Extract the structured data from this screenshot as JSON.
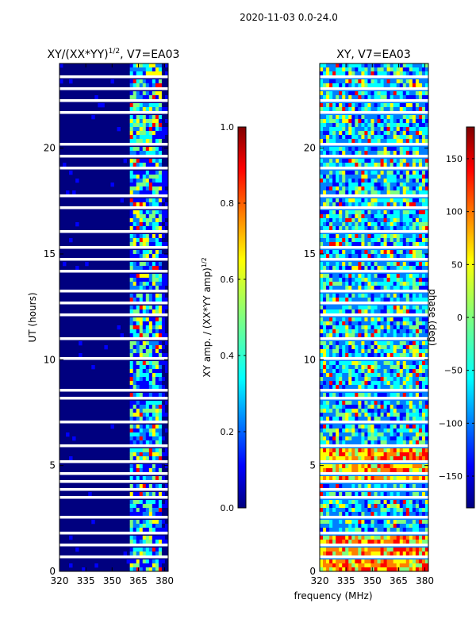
{
  "suptitle": "2020-11-03 0.0-24.0",
  "colors": {
    "jet": [
      "#00007f",
      "#0000ff",
      "#007fff",
      "#00ffff",
      "#7fff7f",
      "#ffff00",
      "#ff7f00",
      "#ff0000",
      "#7f0000"
    ],
    "background": "#00007f",
    "gap": "#ffffff"
  },
  "chart_data": [
    {
      "type": "heatmap",
      "title_main": "XY/(XX*YY)",
      "title_sup": "1/2",
      "title_rest": ", V7=EA03",
      "xlabel": "",
      "ylabel": "UT (hours)",
      "xlim": [
        320,
        382
      ],
      "ylim": [
        0,
        24
      ],
      "xticks": [
        320,
        335,
        350,
        365,
        380
      ],
      "yticks": [
        0,
        5,
        10,
        15,
        20
      ],
      "colorbar": {
        "label_main": "XY amp. / (XX*YY amp)",
        "label_sup": "1/2",
        "range": [
          0.0,
          1.0
        ],
        "ticks": [
          "0.0",
          "0.2",
          "0.4",
          "0.6",
          "0.8",
          "1.0"
        ]
      }
    },
    {
      "type": "heatmap",
      "title_main": "XY, V7=EA03",
      "xlabel": "frequency (MHz)",
      "ylabel": "",
      "xlim": [
        320,
        382
      ],
      "ylim": [
        0,
        24
      ],
      "xticks": [
        320,
        335,
        350,
        365,
        380
      ],
      "yticks": [
        0,
        5,
        10,
        15,
        20
      ],
      "colorbar": {
        "label_main": "phase (deg)",
        "range": [
          -180,
          180
        ],
        "ticks": [
          "-150",
          "-100",
          "-50",
          "0",
          "50",
          "100",
          "150"
        ]
      }
    }
  ]
}
